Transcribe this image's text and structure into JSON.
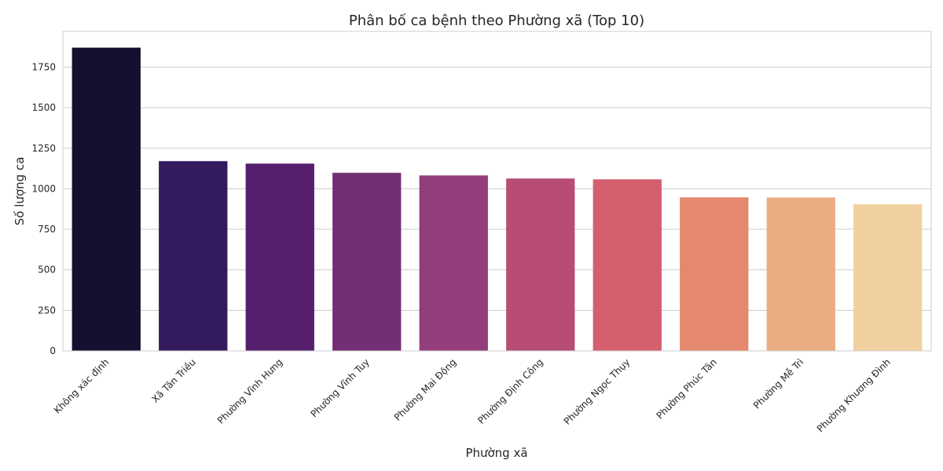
{
  "chart_data": {
    "type": "bar",
    "title": "Phân bố ca bệnh theo Phường xã (Top 10)",
    "xlabel": "Phường xã",
    "ylabel": "Số lượng ca",
    "categories": [
      "Không xác định",
      "Xã Tân Triều",
      "Phường Vĩnh Hưng",
      "Phường Vĩnh Tuy",
      "Phường Mai Động",
      "Phường Định Công",
      "Phường Ngọc Thụy",
      "Phường Phúc Tân",
      "Phường Mễ Trì",
      "Phường Khương Đình"
    ],
    "values": [
      1870,
      1170,
      1155,
      1098,
      1082,
      1063,
      1058,
      947,
      946,
      904
    ],
    "colors": [
      "#160f30",
      "#331b5e",
      "#56206f",
      "#732f74",
      "#933e7a",
      "#b74c75",
      "#d4606d",
      "#e48870",
      "#ecac83",
      "#f1d09f"
    ],
    "ylim": [
      0,
      1970
    ],
    "yticks": [
      0,
      250,
      500,
      750,
      1000,
      1250,
      1500,
      1750
    ],
    "grid": true
  }
}
